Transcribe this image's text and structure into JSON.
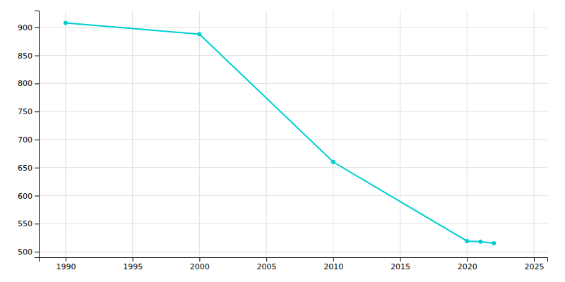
{
  "chart_data": {
    "type": "line",
    "x": [
      1990,
      2000,
      2010,
      2020,
      2021,
      2022
    ],
    "values": [
      908,
      888,
      660,
      519,
      518,
      515
    ],
    "color": "#00CED1",
    "marker": "circle",
    "xlim": [
      1988,
      2026
    ],
    "ylim": [
      490,
      930
    ],
    "xticks": [
      1990,
      1995,
      2000,
      2005,
      2010,
      2015,
      2020,
      2025
    ],
    "yticks": [
      500,
      550,
      600,
      650,
      700,
      750,
      800,
      850,
      900
    ],
    "grid": true
  }
}
